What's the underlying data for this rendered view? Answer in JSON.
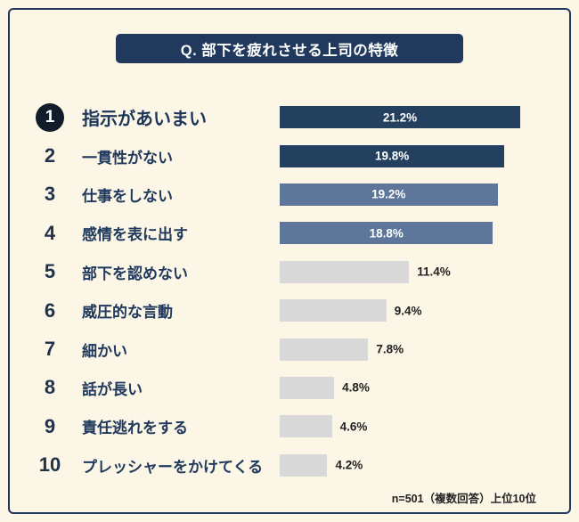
{
  "page": {
    "background_color": "#FBF6E6",
    "border_color": "#20395C"
  },
  "title": "Q. 部下を疲れさせる上司の特徴",
  "footer_note": "n=501（複数回答）上位10位",
  "colors": {
    "dark": "#24405F",
    "medium": "#5D7699",
    "light": "#D9D9D9",
    "badge": "#111C2B",
    "text": "#20395C"
  },
  "chart_data": {
    "type": "bar",
    "orientation": "horizontal",
    "title": "Q. 部下を疲れさせる上司の特徴",
    "categories": [
      "指示があいまい",
      "一貫性がない",
      "仕事をしない",
      "感情を表に出す",
      "部下を認めない",
      "威圧的な言動",
      "細かい",
      "話が長い",
      "責任逃れをする",
      "プレッシャーをかけてくる"
    ],
    "values": [
      21.2,
      19.8,
      19.2,
      18.8,
      11.4,
      9.4,
      7.8,
      4.8,
      4.6,
      4.2
    ],
    "value_labels": [
      "21.2%",
      "19.8%",
      "19.2%",
      "18.8%",
      "11.4%",
      "9.4%",
      "7.8%",
      "4.8%",
      "4.6%",
      "4.2%"
    ],
    "xlim": [
      0,
      21.2
    ],
    "grid": false,
    "legend": false,
    "note": "n=501（複数回答）上位10位"
  },
  "rows": [
    {
      "rank": "1",
      "label": "指示があいまい",
      "value": 21.2,
      "pct": "21.2%",
      "tone": "dark",
      "pct_position": "inside",
      "highlight": true
    },
    {
      "rank": "2",
      "label": "一貫性がない",
      "value": 19.8,
      "pct": "19.8%",
      "tone": "dark",
      "pct_position": "inside",
      "highlight": false
    },
    {
      "rank": "3",
      "label": "仕事をしない",
      "value": 19.2,
      "pct": "19.2%",
      "tone": "medium",
      "pct_position": "inside",
      "highlight": false
    },
    {
      "rank": "4",
      "label": "感情を表に出す",
      "value": 18.8,
      "pct": "18.8%",
      "tone": "medium",
      "pct_position": "inside",
      "highlight": false
    },
    {
      "rank": "5",
      "label": "部下を認めない",
      "value": 11.4,
      "pct": "11.4%",
      "tone": "light",
      "pct_position": "outside",
      "highlight": false
    },
    {
      "rank": "6",
      "label": "威圧的な言動",
      "value": 9.4,
      "pct": "9.4%",
      "tone": "light",
      "pct_position": "outside",
      "highlight": false
    },
    {
      "rank": "7",
      "label": "細かい",
      "value": 7.8,
      "pct": "7.8%",
      "tone": "light",
      "pct_position": "outside",
      "highlight": false
    },
    {
      "rank": "8",
      "label": "話が長い",
      "value": 4.8,
      "pct": "4.8%",
      "tone": "light",
      "pct_position": "outside",
      "highlight": false
    },
    {
      "rank": "9",
      "label": "責任逃れをする",
      "value": 4.6,
      "pct": "4.6%",
      "tone": "light",
      "pct_position": "outside",
      "highlight": false
    },
    {
      "rank": "10",
      "label": "プレッシャーをかけてくる",
      "value": 4.2,
      "pct": "4.2%",
      "tone": "light",
      "pct_position": "outside",
      "highlight": false
    }
  ]
}
